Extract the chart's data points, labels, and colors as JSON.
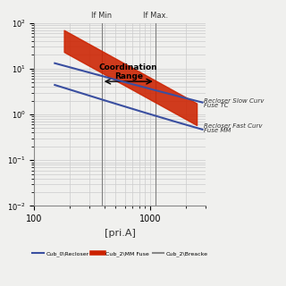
{
  "title": "",
  "xlabel": "[pri.A]",
  "xlim": [
    100,
    3000
  ],
  "ylim": [
    0.01,
    100
  ],
  "if_min_x": 380,
  "if_max_x": 1100,
  "background_color": "#f0f0ee",
  "grid_color": "#cccccc",
  "recloser_slow_label": "Recloser Slow Curv",
  "recloser_fast_label": "Recloser Fast Curv",
  "fuse_tc_label": "Fuse TC",
  "fuse_mm_label": "Fuse MM",
  "legend_entries": [
    "Cub_0\\Recloser",
    "Cub_2\\MM Fuse",
    "Cub_2\\Breacke"
  ],
  "recloser_color": "#3a4fa0",
  "fuse_color": "#cc2200",
  "breaker_color": "#888888"
}
